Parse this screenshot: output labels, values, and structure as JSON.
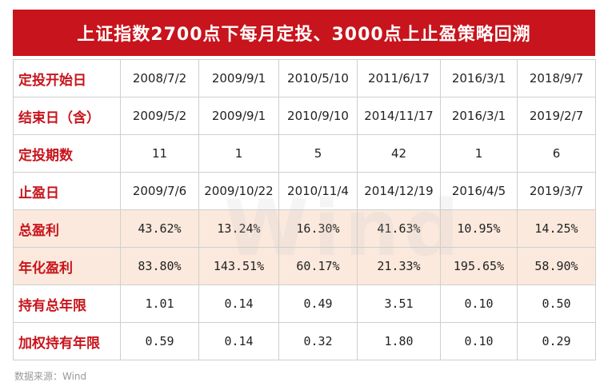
{
  "title": "上证指数2700点下每月定投、3000点上止盈策略回溯",
  "rows": [
    {
      "label": "定投开始日",
      "values": [
        "2008/7/2",
        "2009/9/1",
        "2010/5/10",
        "2011/6/17",
        "2016/3/1",
        "2018/9/7"
      ]
    },
    {
      "label": "结束日（含）",
      "values": [
        "2009/5/2",
        "2009/9/1",
        "2010/9/10",
        "2014/11/17",
        "2016/3/1",
        "2019/2/7"
      ]
    },
    {
      "label": "定投期数",
      "values": [
        "11",
        "1",
        "5",
        "42",
        "1",
        "6"
      ]
    },
    {
      "label": "止盈日",
      "values": [
        "2009/7/6",
        "2009/10/22",
        "2010/11/4",
        "2014/12/19",
        "2016/4/5",
        "2019/3/7"
      ]
    },
    {
      "label": "总盈利",
      "values": [
        "43.62%",
        "13.24%",
        "16.30%",
        "41.63%",
        "10.95%",
        "14.25%"
      ]
    },
    {
      "label": "年化盈利",
      "values": [
        "83.80%",
        "143.51%",
        "60.17%",
        "21.33%",
        "195.65%",
        "58.90%"
      ]
    },
    {
      "label": "持有总年限",
      "values": [
        "1.01",
        "0.14",
        "0.49",
        "3.51",
        "0.10",
        "0.50"
      ]
    },
    {
      "label": "加权持有年限",
      "values": [
        "0.59",
        "0.14",
        "0.32",
        "1.80",
        "0.10",
        "0.29"
      ]
    }
  ],
  "watermark": "Wind",
  "source": "数据来源：Wind",
  "colors": {
    "accent": "#c8141c",
    "highlight_row": "#fbe9dd"
  }
}
